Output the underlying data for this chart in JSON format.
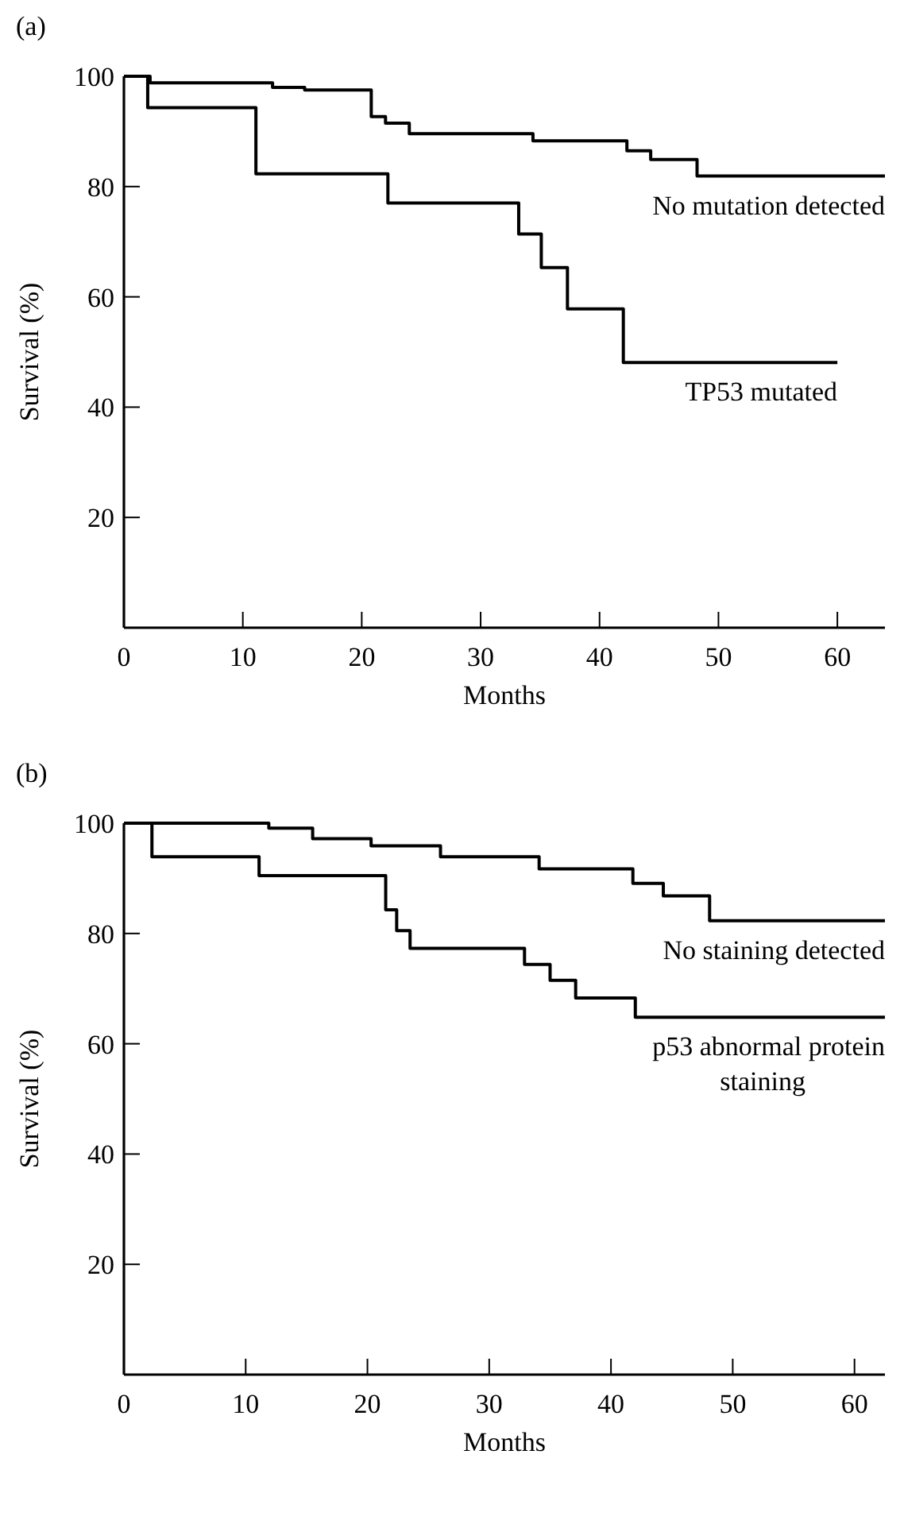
{
  "chart_data": [
    {
      "type": "step",
      "title": "(a)",
      "xlabel": "Months",
      "ylabel": "Survival (%)",
      "xlim": [
        0,
        64
      ],
      "ylim": [
        0,
        100
      ],
      "xticks": [
        0,
        10,
        20,
        30,
        40,
        50,
        60
      ],
      "yticks": [
        20,
        40,
        60,
        80,
        100
      ],
      "grid": false,
      "marker": "none",
      "line_style": "solid",
      "series": [
        {
          "name": "No mutation detected",
          "color": "#000000",
          "x": [
            0,
            2.2,
            12.5,
            15.2,
            20.8,
            22,
            24,
            27.5,
            34.4,
            42.3,
            44.3,
            48.2,
            64
          ],
          "values": [
            100,
            98.8,
            98,
            97.5,
            92.7,
            91.5,
            89.6,
            89.6,
            88.3,
            86.5,
            84.9,
            81.9,
            81.9
          ]
        },
        {
          "name": "TP53 mutated",
          "color": "#000000",
          "x": [
            0,
            2,
            11.1,
            22.2,
            33.2,
            35.1,
            37.3,
            42,
            60
          ],
          "values": [
            100,
            94.3,
            82.3,
            77,
            71.4,
            65.3,
            57.8,
            48.1,
            48.1
          ]
        }
      ]
    },
    {
      "type": "step",
      "title": "(b)",
      "xlabel": "Months",
      "ylabel": "Survival (%)",
      "xlim": [
        0,
        62.5
      ],
      "ylim": [
        0,
        100
      ],
      "xticks": [
        0,
        10,
        20,
        30,
        40,
        50,
        60
      ],
      "yticks": [
        20,
        40,
        60,
        80,
        100
      ],
      "grid": false,
      "marker": "none",
      "line_style": "solid",
      "series": [
        {
          "name": "No staining detected",
          "color": "#000000",
          "x": [
            0,
            11.9,
            15.5,
            20.3,
            26,
            34.1,
            41.8,
            44.3,
            48.1,
            62.5
          ],
          "values": [
            100,
            99.1,
            97.2,
            95.9,
            93.9,
            91.7,
            89.1,
            86.8,
            82.3,
            82.3
          ]
        },
        {
          "name": "p53 abnormal protein staining",
          "color": "#000000",
          "x": [
            0,
            2.3,
            11.1,
            21.5,
            22.4,
            23.5,
            32.9,
            35,
            37.1,
            42,
            62.5
          ],
          "values": [
            100,
            93.9,
            90.5,
            84.3,
            80.5,
            77.3,
            74.4,
            71.5,
            68.3,
            64.8,
            64.8
          ]
        }
      ]
    }
  ]
}
